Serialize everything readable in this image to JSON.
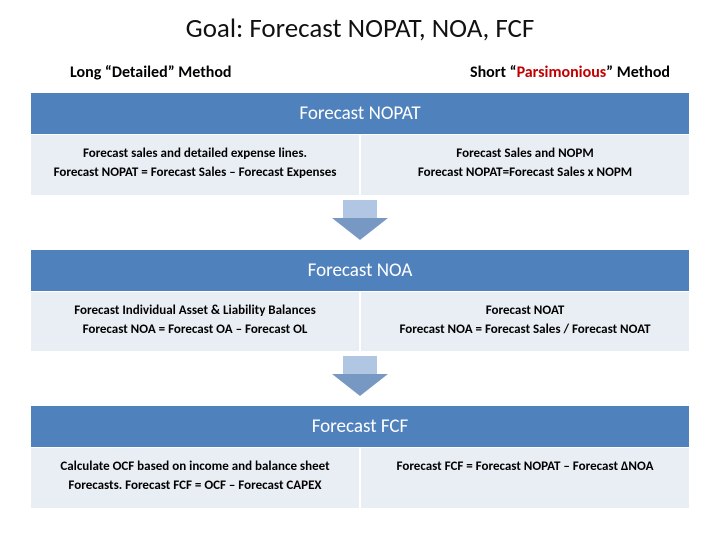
{
  "title": "Goal: Forecast NOPAT, NOA, FCF",
  "left_method": "Long “Detailed” Method",
  "right_method_prefix": "Short “",
  "right_method_highlight": "Parsimonious",
  "right_method_suffix": "” Method",
  "highlight_color": "#c00000",
  "bar_color": "#4f81bd",
  "cell_bg": "#e9edf4",
  "sections": {
    "nopat": {
      "header": "Forecast NOPAT",
      "left_line1": "Forecast sales and detailed expense lines.",
      "left_line2": "Forecast NOPAT = Forecast Sales – Forecast Expenses",
      "right_line1": "Forecast Sales and NOPM",
      "right_line2": "Forecast NOPAT=Forecast Sales x NOPM"
    },
    "noa": {
      "header": "Forecast NOA",
      "left_line1": "Forecast Individual Asset & Liability Balances",
      "left_line2": "Forecast NOA = Forecast OA – Forecast OL",
      "right_line1": "Forecast NOAT",
      "right_line2": "Forecast NOA = Forecast Sales / Forecast NOAT"
    },
    "fcf": {
      "header": "Forecast FCF",
      "left_line1": "Calculate OCF based on income and balance sheet",
      "left_line2": "Forecasts.  Forecast FCF = OCF – Forecast CAPEX",
      "right_line1": "",
      "right_line2": "Forecast FCF = Forecast NOPAT – Forecast  ΔNOA"
    }
  },
  "arrow": {
    "stem_color": "#b0c6e2",
    "head_color": "#7898c4",
    "stem_width": 34,
    "stem_height": 18,
    "head_width": 56,
    "head_height": 22
  }
}
